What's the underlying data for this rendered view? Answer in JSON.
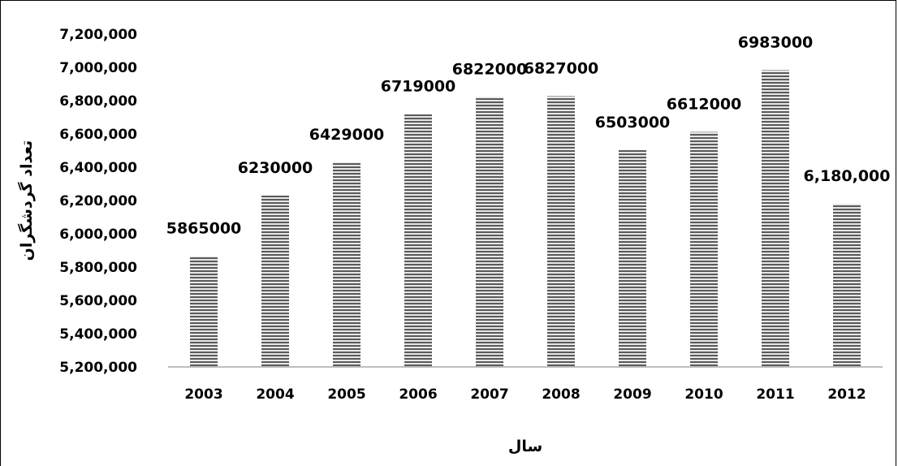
{
  "chart_data": {
    "type": "bar",
    "title": "",
    "xlabel": "سال",
    "ylabel": "تعداد گردشگران",
    "categories": [
      "2003",
      "2004",
      "2005",
      "2006",
      "2007",
      "2008",
      "2009",
      "2010",
      "2011",
      "2012"
    ],
    "values": [
      5865000,
      6230000,
      6429000,
      6719000,
      6822000,
      6827000,
      6503000,
      6612000,
      6983000,
      6180000
    ],
    "data_labels": [
      "5865000",
      "6230000",
      "6429000",
      "6719000",
      "6822000",
      "6827000",
      "6503000",
      "6612000",
      "6983000",
      "6,180,000"
    ],
    "ylim": [
      5200000,
      7200000
    ],
    "yticks": [
      5200000,
      5400000,
      5600000,
      5800000,
      6000000,
      6200000,
      6400000,
      6600000,
      6800000,
      7000000,
      7200000
    ],
    "ytick_labels": [
      "5,200,000",
      "5,400,000",
      "5,600,000",
      "5,800,000",
      "6,000,000",
      "6,200,000",
      "6,400,000",
      "6,600,000",
      "6,800,000",
      "7,000,000",
      "7,200,000"
    ],
    "grid": false,
    "legend": "none",
    "bar_fill": "horizontal-stripes",
    "colors": {
      "bar_dark": "#5a5a5a",
      "bar_light": "#e6e6e6",
      "axis": "#bfbfbf",
      "text": "#000000"
    }
  }
}
